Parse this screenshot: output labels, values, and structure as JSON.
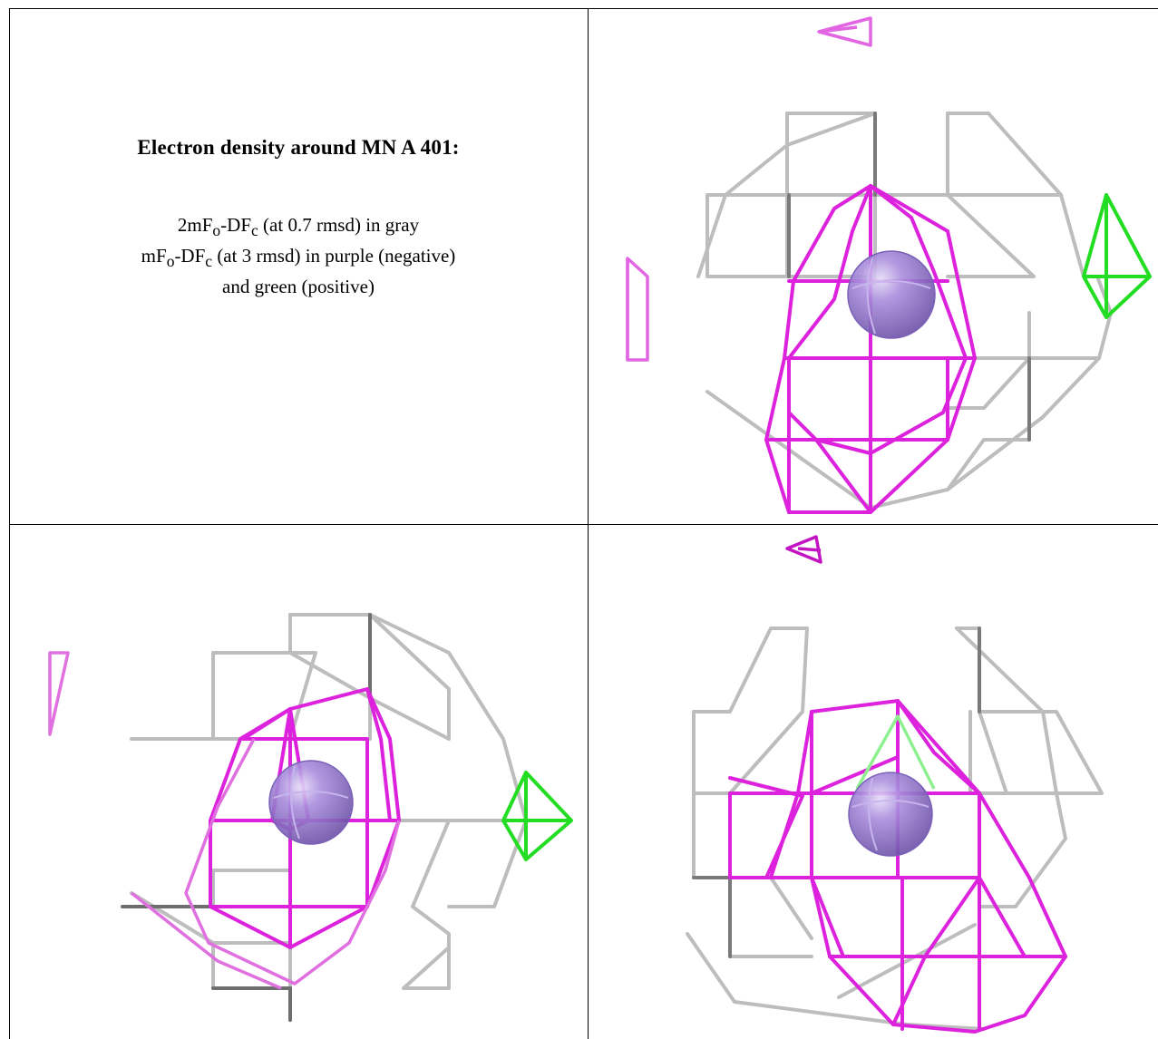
{
  "caption": {
    "title": "Electron density around MN A 401:",
    "line1": {
      "pre": "2mF",
      "sub1": "o",
      "mid": "-DF",
      "sub2": "c",
      "post": " (at 0.7 rmsd) in gray"
    },
    "line2": {
      "pre": "mF",
      "sub1": "o",
      "mid": "-DF",
      "sub2": "c",
      "post": " (at 3 rmsd) in purple (negative)"
    },
    "line3": "and green (positive)"
  },
  "colors": {
    "gray_mesh": "#b4b4b4",
    "gray_dark": "#6e6e6e",
    "negative_mesh": "#dd22dd",
    "positive_mesh": "#22dd22",
    "atom": "#9a7fd0"
  },
  "panels": [
    {
      "name": "view-top-right"
    },
    {
      "name": "view-bottom-left"
    },
    {
      "name": "view-bottom-right"
    }
  ]
}
